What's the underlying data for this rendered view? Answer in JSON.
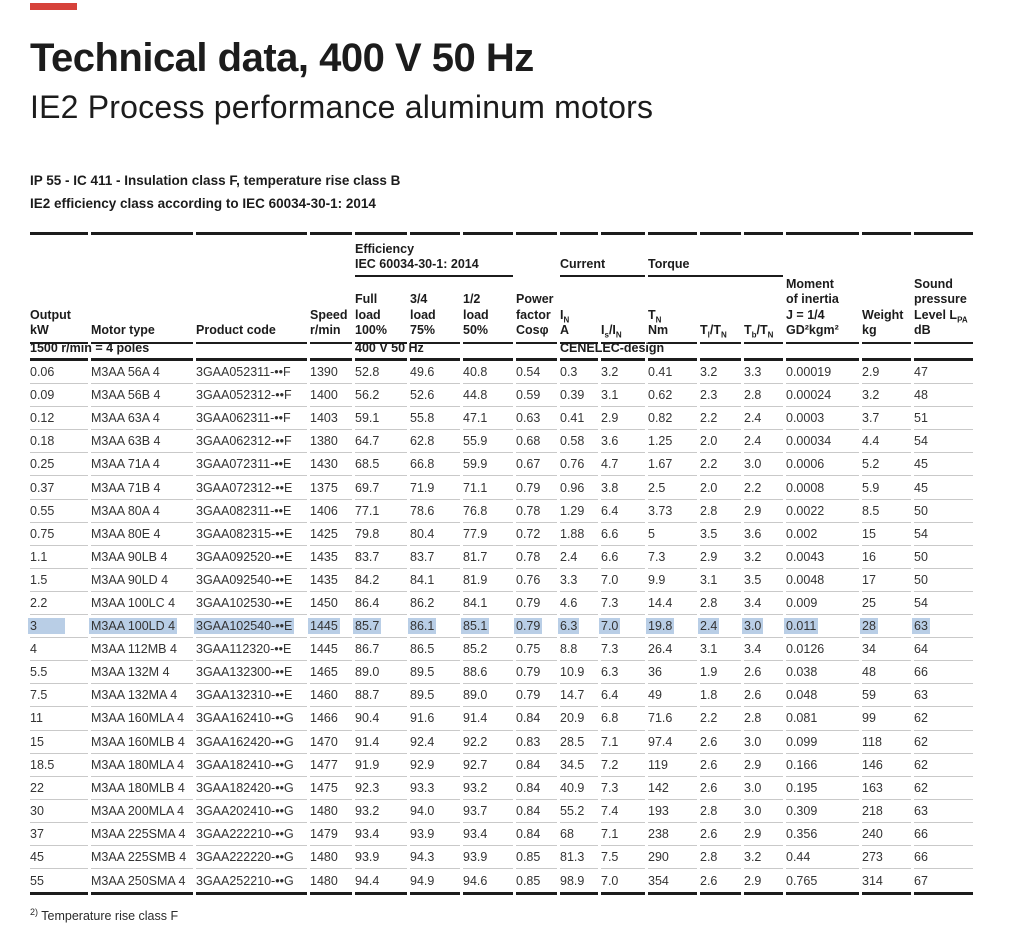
{
  "accent_color": "#d6423a",
  "highlight_color": "#b9cee6",
  "header": {
    "title": "Technical data, 400 V 50 Hz",
    "subtitle": "IE2 Process performance aluminum motors",
    "spec_line1": "IP 55 - IC 411 - Insulation class F, temperature rise class B",
    "spec_line2": "IE2 efficiency class according to IEC 60034-30-1: 2014"
  },
  "table": {
    "groups": {
      "efficiency_l1": "Efficiency",
      "efficiency_l2": "IEC 60034-30-1: 2014",
      "current": "Current",
      "torque": "Torque"
    },
    "columns": [
      {
        "lines": [
          "Output",
          "kW"
        ]
      },
      {
        "lines": [
          "Motor type"
        ]
      },
      {
        "lines": [
          "Product code"
        ]
      },
      {
        "lines": [
          "Speed",
          "r/min"
        ]
      },
      {
        "lines": [
          "Full",
          "load",
          "100%"
        ]
      },
      {
        "lines": [
          "3/4",
          "load",
          "75%"
        ]
      },
      {
        "lines": [
          "1/2",
          "load",
          "50%"
        ]
      },
      {
        "lines": [
          "Power",
          "factor",
          "Cos&#966;"
        ]
      },
      {
        "lines": [
          "I<sub>N</sub>",
          "A"
        ]
      },
      {
        "lines": [
          "I<sub>s</sub>/I<sub>N</sub>"
        ]
      },
      {
        "lines": [
          "T<sub>N</sub>",
          "Nm"
        ]
      },
      {
        "lines": [
          "T<sub>l</sub>/T<sub>N</sub>"
        ]
      },
      {
        "lines": [
          "T<sub>b</sub>/T<sub>N</sub>"
        ]
      },
      {
        "lines": [
          "Moment",
          "of inertia",
          "J = 1/4",
          "GD&#178;kgm&#178;"
        ]
      },
      {
        "lines": [
          "Weight",
          "kg"
        ]
      },
      {
        "lines": [
          "Sound",
          "pressure",
          "Level L<sub>PA</sub>",
          "dB"
        ]
      }
    ],
    "subheader": {
      "poles": "1500 r/min = 4 poles",
      "voltage": "400 V 50 Hz",
      "design": "CENELEC-design"
    },
    "highlight_row_index": 11,
    "rows": [
      [
        "0.06",
        "M3AA 56A 4",
        "3GAA052311-••F",
        "1390",
        "52.8",
        "49.6",
        "40.8",
        "0.54",
        "0.3",
        "3.2",
        "0.41",
        "3.2",
        "3.3",
        "0.00019",
        "2.9",
        "47"
      ],
      [
        "0.09",
        "M3AA 56B 4",
        "3GAA052312-••F",
        "1400",
        "56.2",
        "52.6",
        "44.8",
        "0.59",
        "0.39",
        "3.1",
        "0.62",
        "2.3",
        "2.8",
        "0.00024",
        "3.2",
        "48"
      ],
      [
        "0.12",
        "M3AA 63A 4",
        "3GAA062311-••F",
        "1403",
        "59.1",
        "55.8",
        "47.1",
        "0.63",
        "0.41",
        "2.9",
        "0.82",
        "2.2",
        "2.4",
        "0.0003",
        "3.7",
        "51"
      ],
      [
        "0.18",
        "M3AA 63B 4",
        "3GAA062312-••F",
        "1380",
        "64.7",
        "62.8",
        "55.9",
        "0.68",
        "0.58",
        "3.6",
        "1.25",
        "2.0",
        "2.4",
        "0.00034",
        "4.4",
        "54"
      ],
      [
        "0.25",
        "M3AA 71A 4",
        "3GAA072311-••E",
        "1430",
        "68.5",
        "66.8",
        "59.9",
        "0.67",
        "0.76",
        "4.7",
        "1.67",
        "2.2",
        "3.0",
        "0.0006",
        "5.2",
        "45"
      ],
      [
        "0.37",
        "M3AA 71B 4",
        "3GAA072312-••E",
        "1375",
        "69.7",
        "71.9",
        "71.1",
        "0.79",
        "0.96",
        "3.8",
        "2.5",
        "2.0",
        "2.2",
        "0.0008",
        "5.9",
        "45"
      ],
      [
        "0.55",
        "M3AA 80A 4",
        "3GAA082311-••E",
        "1406",
        "77.1",
        "78.6",
        "76.8",
        "0.78",
        "1.29",
        "6.4",
        "3.73",
        "2.8",
        "2.9",
        "0.0022",
        "8.5",
        "50"
      ],
      [
        "0.75",
        "M3AA 80E 4",
        "3GAA082315-••E",
        "1425",
        "79.8",
        "80.4",
        "77.9",
        "0.72",
        "1.88",
        "6.6",
        "5",
        "3.5",
        "3.6",
        "0.002",
        "15",
        "54"
      ],
      [
        "1.1",
        "M3AA 90LB 4",
        "3GAA092520-••E",
        "1435",
        "83.7",
        "83.7",
        "81.7",
        "0.78",
        "2.4",
        "6.6",
        "7.3",
        "2.9",
        "3.2",
        "0.0043",
        "16",
        "50"
      ],
      [
        "1.5",
        "M3AA 90LD 4",
        "3GAA092540-••E",
        "1435",
        "84.2",
        "84.1",
        "81.9",
        "0.76",
        "3.3",
        "7.0",
        "9.9",
        "3.1",
        "3.5",
        "0.0048",
        "17",
        "50"
      ],
      [
        "2.2",
        "M3AA 100LC 4",
        "3GAA102530-••E",
        "1450",
        "86.4",
        "86.2",
        "84.1",
        "0.79",
        "4.6",
        "7.3",
        "14.4",
        "2.8",
        "3.4",
        "0.009",
        "25",
        "54"
      ],
      [
        "3",
        "M3AA 100LD 4",
        "3GAA102540-••E",
        "1445",
        "85.7",
        "86.1",
        "85.1",
        "0.79",
        "6.3",
        "7.0",
        "19.8",
        "2.4",
        "3.0",
        "0.011",
        "28",
        "63"
      ],
      [
        "4",
        "M3AA 112MB 4",
        "3GAA112320-••E",
        "1445",
        "86.7",
        "86.5",
        "85.2",
        "0.75",
        "8.8",
        "7.3",
        "26.4",
        "3.1",
        "3.4",
        "0.0126",
        "34",
        "64"
      ],
      [
        "5.5",
        "M3AA 132M 4",
        "3GAA132300-••E",
        "1465",
        "89.0",
        "89.5",
        "88.6",
        "0.79",
        "10.9",
        "6.3",
        "36",
        "1.9",
        "2.6",
        "0.038",
        "48",
        "66"
      ],
      [
        "7.5",
        "M3AA 132MA 4",
        "3GAA132310-••E",
        "1460",
        "88.7",
        "89.5",
        "89.0",
        "0.79",
        "14.7",
        "6.4",
        "49",
        "1.8",
        "2.6",
        "0.048",
        "59",
        "63"
      ],
      [
        "11",
        "M3AA 160MLA 4",
        "3GAA162410-••G",
        "1466",
        "90.4",
        "91.6",
        "91.4",
        "0.84",
        "20.9",
        "6.8",
        "71.6",
        "2.2",
        "2.8",
        "0.081",
        "99",
        "62"
      ],
      [
        "15",
        "M3AA 160MLB 4",
        "3GAA162420-••G",
        "1470",
        "91.4",
        "92.4",
        "92.2",
        "0.83",
        "28.5",
        "7.1",
        "97.4",
        "2.6",
        "3.0",
        "0.099",
        "118",
        "62"
      ],
      [
        "18.5",
        "M3AA 180MLA 4",
        "3GAA182410-••G",
        "1477",
        "91.9",
        "92.9",
        "92.7",
        "0.84",
        "34.5",
        "7.2",
        "119",
        "2.6",
        "2.9",
        "0.166",
        "146",
        "62"
      ],
      [
        "22",
        "M3AA 180MLB 4",
        "3GAA182420-••G",
        "1475",
        "92.3",
        "93.3",
        "93.2",
        "0.84",
        "40.9",
        "7.3",
        "142",
        "2.6",
        "3.0",
        "0.195",
        "163",
        "62"
      ],
      [
        "30",
        "M3AA 200MLA 4",
        "3GAA202410-••G",
        "1480",
        "93.2",
        "94.0",
        "93.7",
        "0.84",
        "55.2",
        "7.4",
        "193",
        "2.8",
        "3.0",
        "0.309",
        "218",
        "63"
      ],
      [
        "37",
        "M3AA 225SMA 4",
        "3GAA222210-••G",
        "1479",
        "93.4",
        "93.9",
        "93.4",
        "0.84",
        "68",
        "7.1",
        "238",
        "2.6",
        "2.9",
        "0.356",
        "240",
        "66"
      ],
      [
        "45",
        "M3AA 225SMB 4",
        "3GAA222220-••G",
        "1480",
        "93.9",
        "94.3",
        "93.9",
        "0.85",
        "81.3",
        "7.5",
        "290",
        "2.8",
        "3.2",
        "0.44",
        "273",
        "66"
      ],
      [
        "55",
        "M3AA 250SMA 4",
        "3GAA252210-••G",
        "1480",
        "94.4",
        "94.9",
        "94.6",
        "0.85",
        "98.9",
        "7.0",
        "354",
        "2.6",
        "2.9",
        "0.765",
        "314",
        "67"
      ]
    ]
  },
  "footnote": {
    "marker": "<sup>2)</sup>",
    "text": "Temperature rise class F"
  }
}
